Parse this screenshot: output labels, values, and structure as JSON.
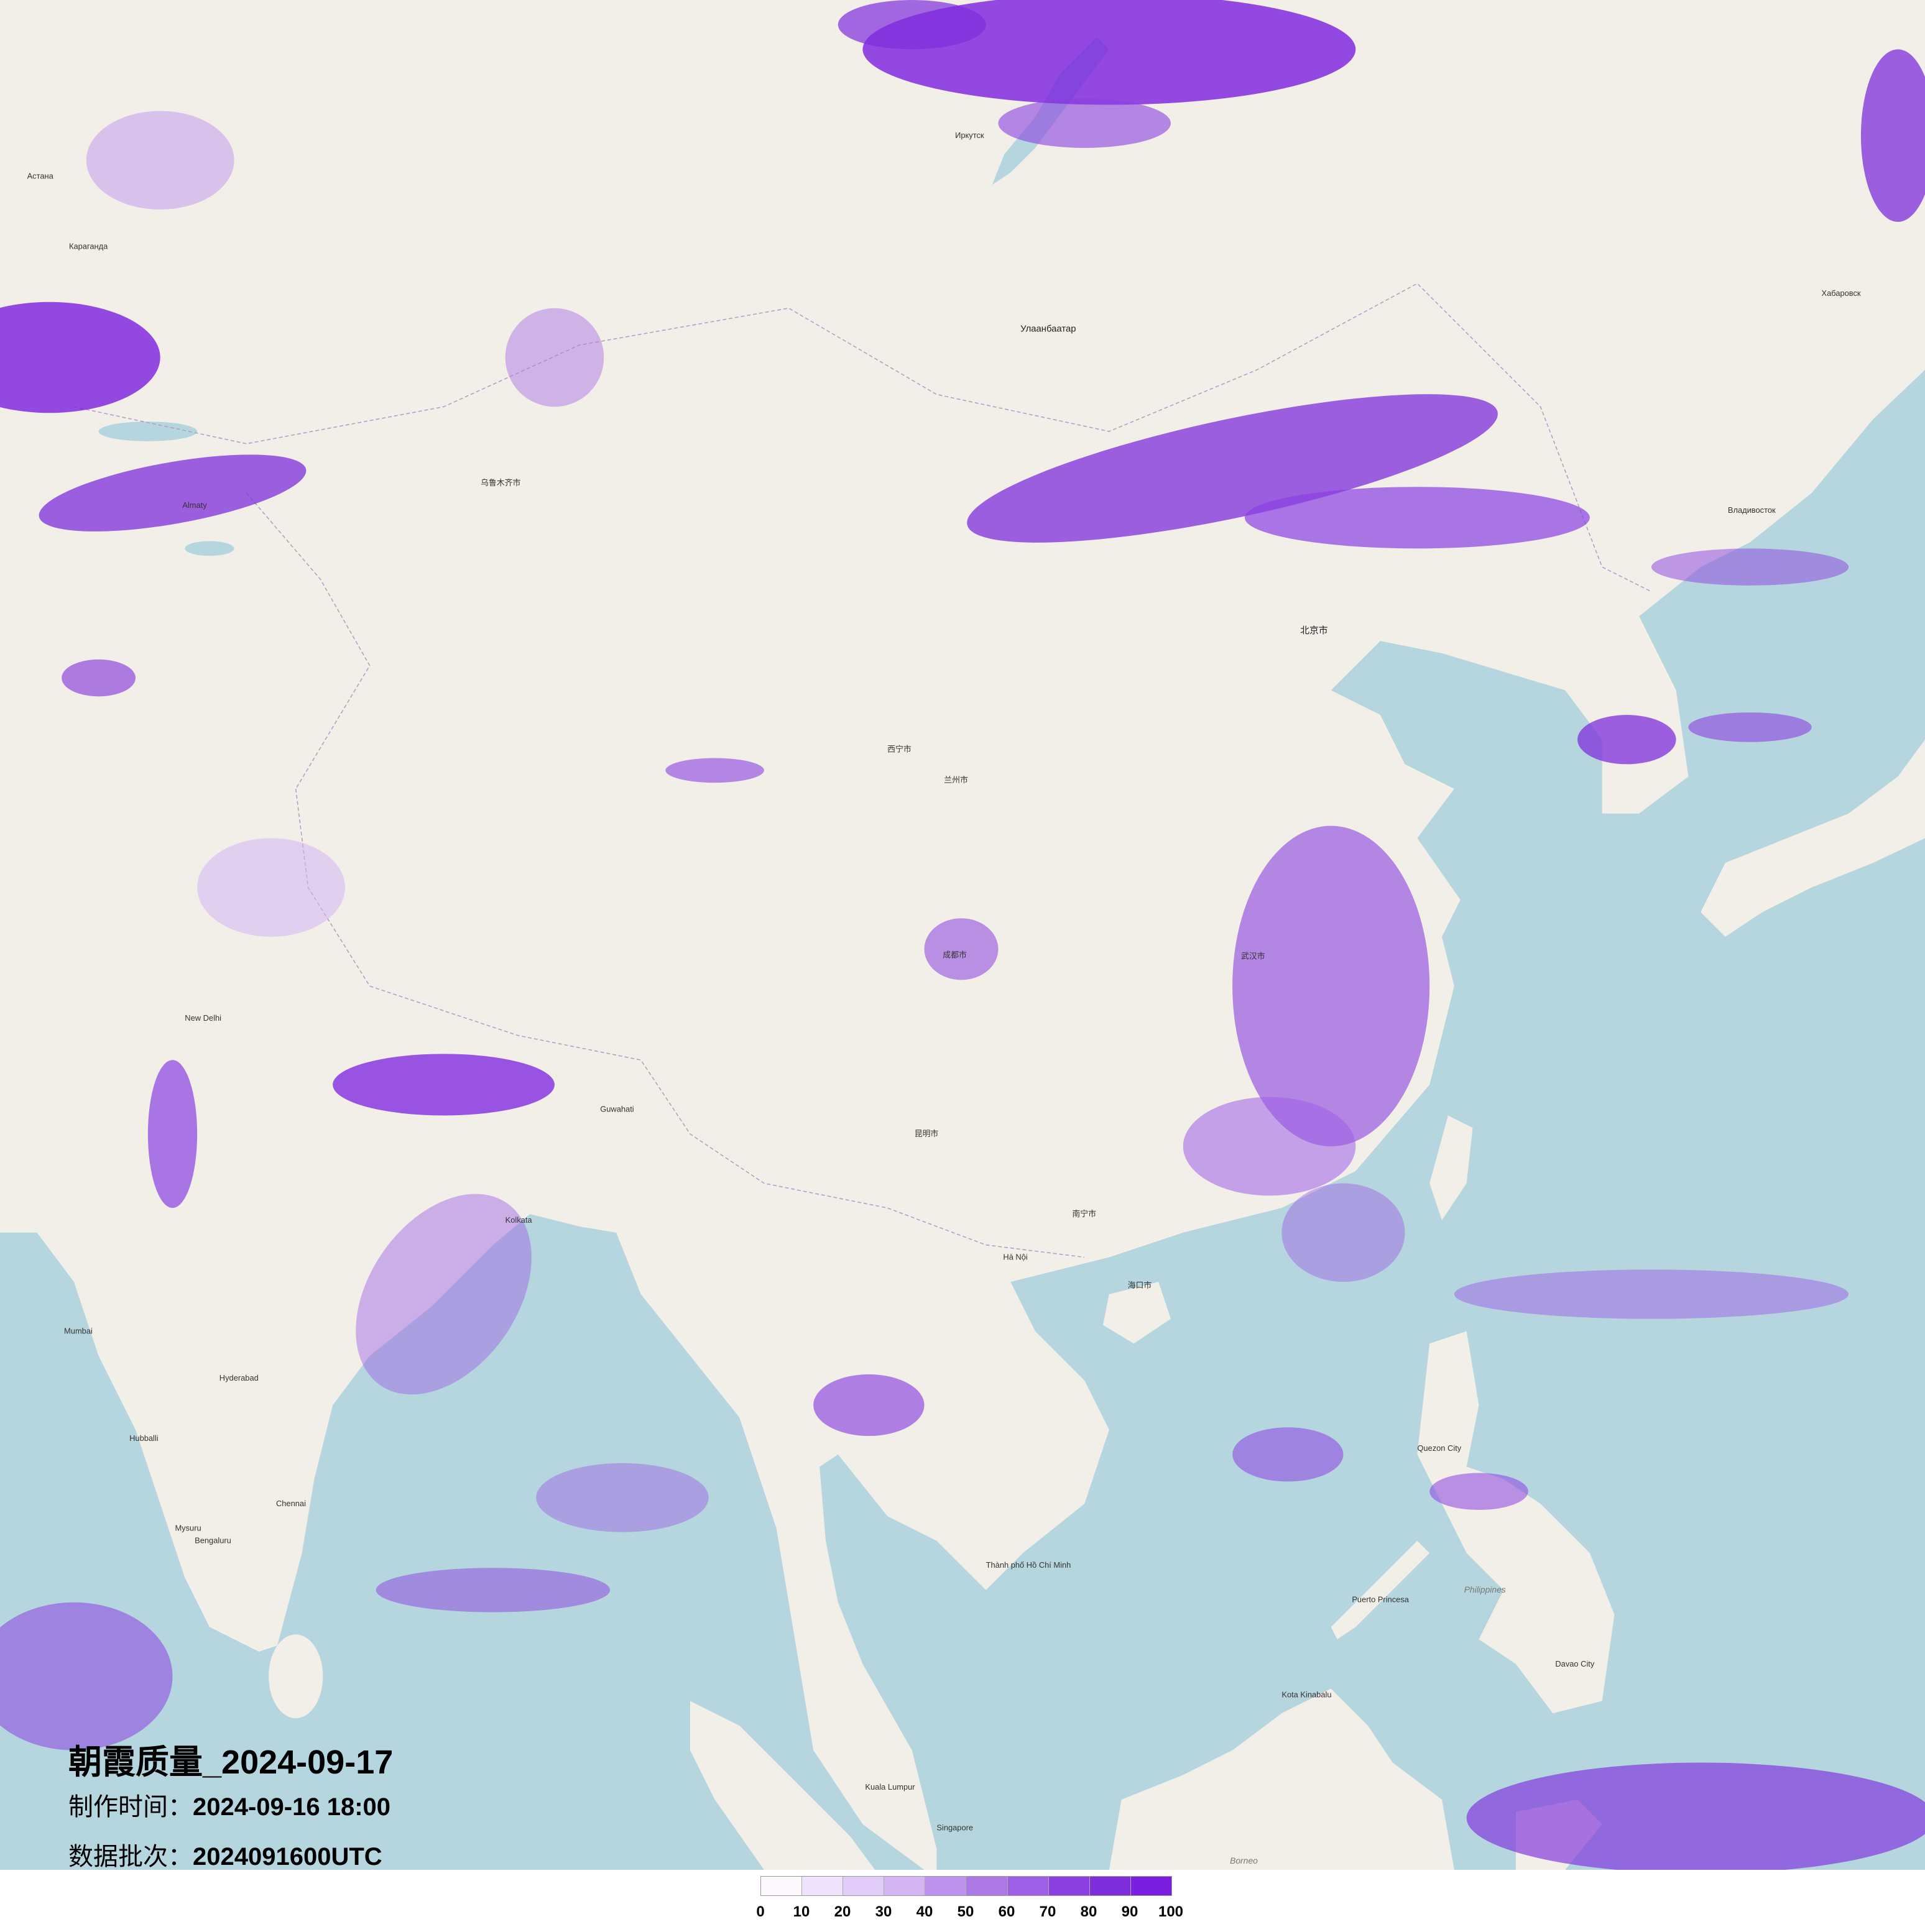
{
  "title": "朝霞质量_2024-09-17",
  "production_time_label": "制作时间：",
  "production_time": "2024-09-16 18:00",
  "data_batch_label": "数据批次：",
  "data_batch": "2024091600UTC",
  "legend": {
    "ticks": [
      "0",
      "10",
      "20",
      "30",
      "40",
      "50",
      "60",
      "70",
      "80",
      "90",
      "100"
    ],
    "colors": [
      "#fcf6fd",
      "#efe3fb",
      "#e2cdfa",
      "#d2b5f2",
      "#bd93ee",
      "#ab78e6",
      "#9c5fe5",
      "#8a40e0",
      "#7e2ddb",
      "#7a1fdf"
    ]
  },
  "map": {
    "land_color": "#f2efe9",
    "sea_color": "#b6d6df",
    "labels": [
      "Улаанбаатар",
      "Иркутск",
      "Астана",
      "Караганда",
      "Хабаровск",
      "Владивосток",
      "北京市",
      "武汉市",
      "成都市",
      "乌鲁木齐市",
      "西宁市",
      "兰州市",
      "昆明市",
      "南宁市",
      "海口市",
      "New Delhi",
      "Kolkata",
      "Mumbai",
      "Hyderabad",
      "Bengaluru",
      "Chennai",
      "Hà Nội",
      "Thành phố Hồ Chí Minh",
      "Quezon City",
      "Singapore",
      "Kuala Lumpur",
      "Guwahati",
      "Borneo",
      "Philippines",
      "Puerto Princesa",
      "Davao City",
      "Kota Kinabalu",
      "Hubballi",
      "Mysuru",
      "Almaty"
    ]
  }
}
